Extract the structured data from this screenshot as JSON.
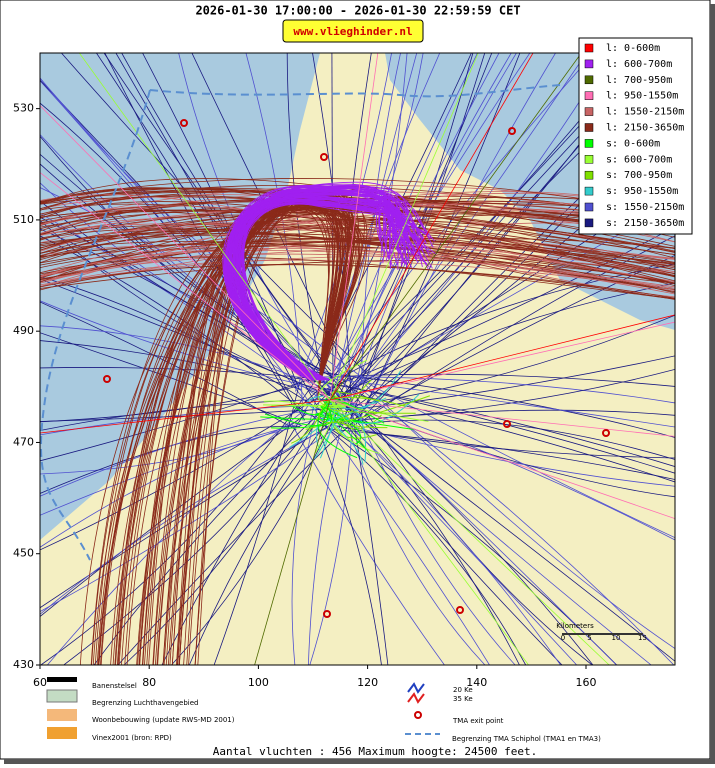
{
  "header": {
    "title": "2026-01-30 17:00:00 - 2026-01-30 22:59:59 CET",
    "site": "www.vlieghinder.nl"
  },
  "map": {
    "xlim": [
      60,
      176.3
    ],
    "ylim": [
      430,
      540
    ],
    "xticks": [
      60,
      80,
      100,
      120,
      140,
      160
    ],
    "yticks": [
      430,
      450,
      470,
      490,
      510,
      530
    ]
  },
  "legend": [
    {
      "label": "l: 0-600m",
      "color": "#ff0000"
    },
    {
      "label": "l: 600-700m",
      "color": "#a020f0"
    },
    {
      "label": "l: 700-950m",
      "color": "#4f6a00"
    },
    {
      "label": "l: 950-1550m",
      "color": "#ff6eb4"
    },
    {
      "label": "l: 1550-2150m",
      "color": "#c86464"
    },
    {
      "label": "l: 2150-3650m",
      "color": "#8b2a1a"
    },
    {
      "label": "s: 0-600m",
      "color": "#00ff00"
    },
    {
      "label": "s: 600-700m",
      "color": "#99ff33"
    },
    {
      "label": "s: 700-950m",
      "color": "#80e000"
    },
    {
      "label": "s: 950-1550m",
      "color": "#33cccc"
    },
    {
      "label": "s: 1550-2150m",
      "color": "#5050d0"
    },
    {
      "label": "s: 2150-3650m",
      "color": "#1a1a80"
    }
  ],
  "scale": {
    "title": "Kilometers",
    "labels": [
      0,
      5,
      10,
      15
    ]
  },
  "key": {
    "runways": "Banenstelsel",
    "airport": "Begrenzing Luchthavengebied",
    "housing": "Woonbebouwing (update RWS-MD 2001)",
    "vinex": "Vinex2001 (bron: RPD)",
    "ke20": "20 Ke",
    "ke35": "35 Ke",
    "exit": "TMA exit point",
    "tma": "Begrenzing TMA Schiphol  (TMA1 en TMA3)"
  },
  "footer": "Aantal vluchten : 456 Maximum hoogte: 24500 feet."
}
